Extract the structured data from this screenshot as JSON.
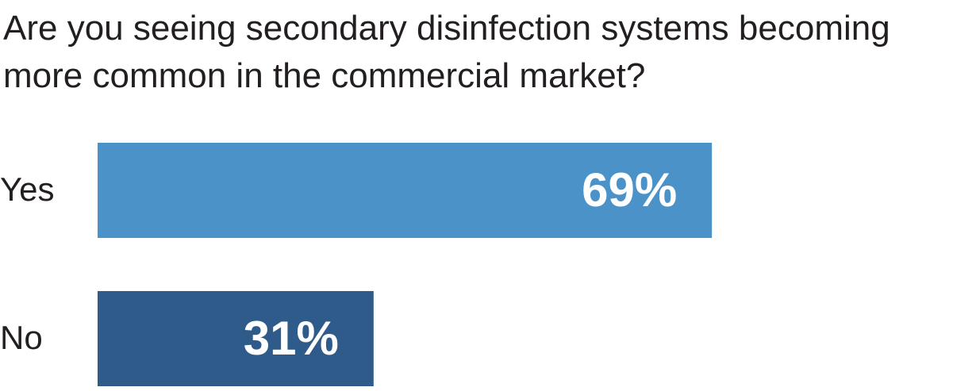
{
  "chart_data": {
    "type": "bar",
    "orientation": "horizontal",
    "title": "Are you seeing secondary disinfection systems becoming more common in the commercial market?",
    "categories": [
      "Yes",
      "No"
    ],
    "values": [
      69,
      31
    ],
    "value_labels": [
      "69%",
      "31%"
    ],
    "colors": [
      "#4a92c8",
      "#2e5b8a"
    ]
  }
}
